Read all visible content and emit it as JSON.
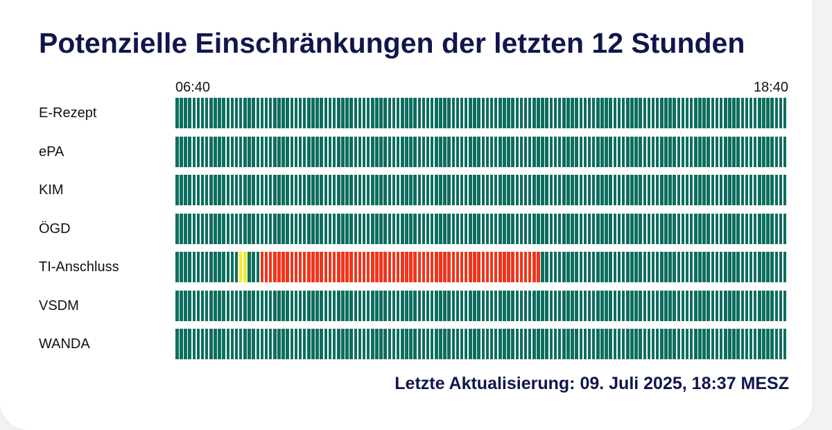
{
  "title": "Potenzielle Einschränkungen der letzten 12 Stunden",
  "timeline": {
    "start": "06:40",
    "end": "18:40",
    "slots": 144
  },
  "colors": {
    "ok": "#0d6e5f",
    "warning": "#f4ea2a",
    "error": "#f2341c"
  },
  "services": [
    {
      "name": "E-Rezept",
      "status": []
    },
    {
      "name": "ePA",
      "status": []
    },
    {
      "name": "KIM",
      "status": []
    },
    {
      "name": "ÖGD",
      "status": []
    },
    {
      "name": "TI-Anschluss",
      "status": [
        {
          "from": 15,
          "to": 16,
          "level": "warning"
        },
        {
          "from": 20,
          "to": 85,
          "level": "error"
        }
      ]
    },
    {
      "name": "VSDM",
      "status": []
    },
    {
      "name": "WANDA",
      "status": []
    }
  ],
  "footer": "Letzte Aktualisierung: 09. Juli 2025, 18:37 MESZ"
}
